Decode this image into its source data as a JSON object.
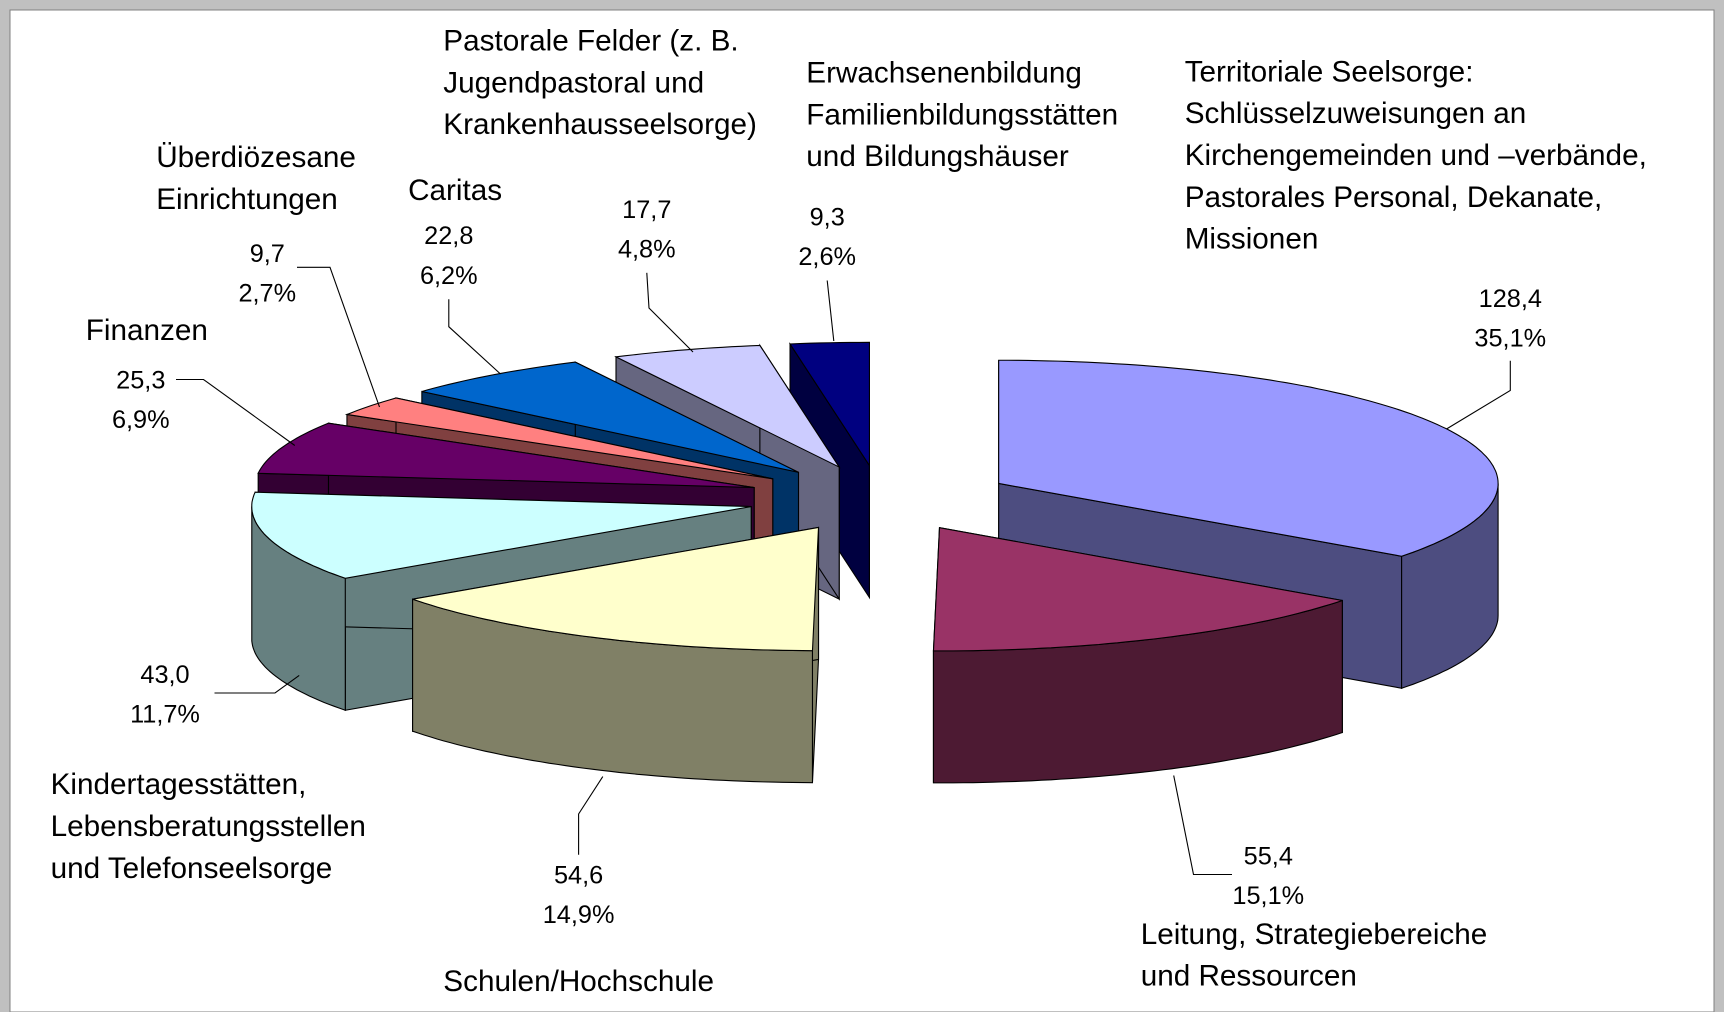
{
  "chart_data": {
    "type": "pie3d",
    "categories": [
      "Territoriale Seelsorge:\nSchlüsselzuweisungen an\nKirchengemeinden und –verbände,\nPastorales Personal, Dekanate,\nMissionen",
      "Leitung, Strategiebereiche\nund Ressourcen",
      "Schulen/Hochschule",
      "Kindertagesstätten,\nLebensberatungsstellen\nund Telefonseelsorge",
      "Finanzen",
      "Überdiözesane\nEinrichtungen",
      "Caritas",
      "Pastorale Felder  (z. B.\nJugendpastoral und\nKrankenhausseelsorge)",
      "Erwachsenenbildung\nFamilienbildungsstätten\nund Bildungshäuser"
    ],
    "values": [
      128.4,
      55.4,
      54.6,
      43.0,
      25.3,
      9.7,
      22.8,
      17.7,
      9.3
    ],
    "value_labels": [
      "128,4",
      "55,4",
      "54,6",
      "43,0",
      "25,3",
      "9,7",
      "22,8",
      "17,7",
      "9,3"
    ],
    "percent_labels": [
      "35,1%",
      "15,1%",
      "14,9%",
      "11,7%",
      "6,9%",
      "2,7%",
      "6,2%",
      "4,8%",
      "2,6%"
    ],
    "colors": [
      "#9999ff",
      "#993366",
      "#ffffcc",
      "#ccffff",
      "#660066",
      "#ff8080",
      "#0066cc",
      "#ccccff",
      "#000080"
    ]
  }
}
